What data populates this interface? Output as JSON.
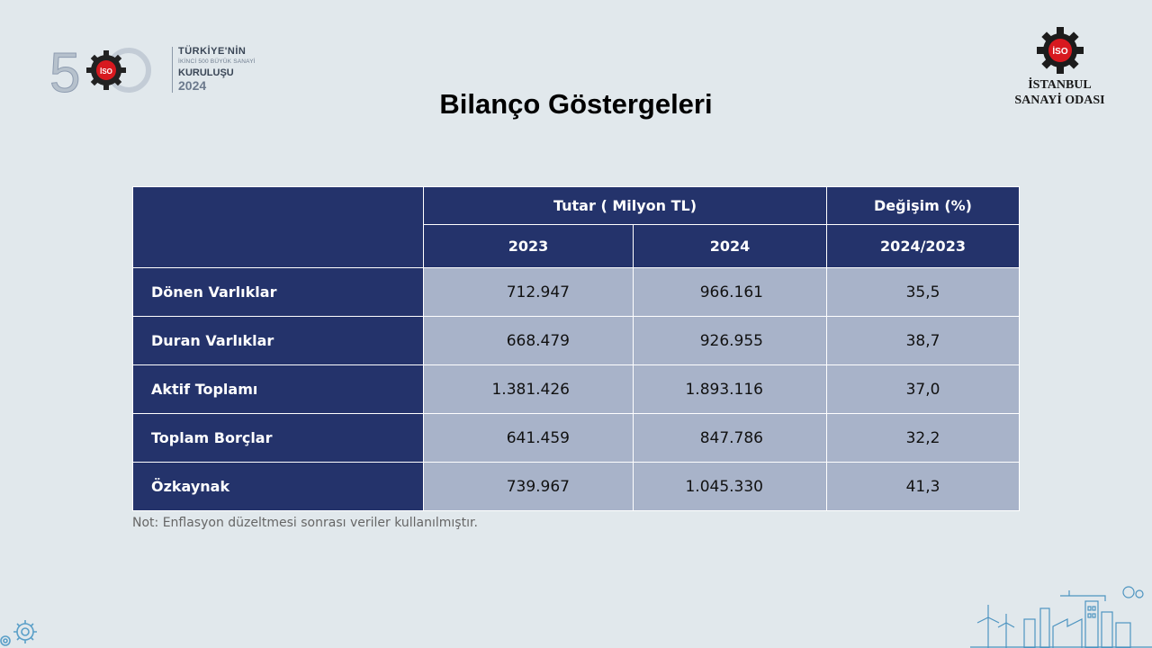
{
  "logo_500": {
    "numeral": "500",
    "line1": "TÜRKİYE'NİN",
    "line2": "İKİNCİ 500 BÜYÜK SANAYİ",
    "line3": "KURULUŞU",
    "line4": "2024",
    "badge": "İSO"
  },
  "logo_iso": {
    "badge": "İSO",
    "name_line1": "İSTANBUL",
    "name_line2": "SANAYİ ODASI"
  },
  "title": "Bilanço Göstergeleri",
  "table": {
    "header_amount": "Tutar ( Milyon TL)",
    "header_change": "Değişim (%)",
    "year_2023": "2023",
    "year_2024": "2024",
    "ratio": "2024/2023",
    "rows": [
      {
        "label": "Dönen Varlıklar",
        "v2023": "712.947",
        "v2024": "966.161",
        "change": "35,5"
      },
      {
        "label": "Duran Varlıklar",
        "v2023": "668.479",
        "v2024": "926.955",
        "change": "38,7"
      },
      {
        "label": "Aktif Toplamı",
        "v2023": "1.381.426",
        "v2024": "1.893.116",
        "change": "37,0"
      },
      {
        "label": "Toplam Borçlar",
        "v2023": "641.459",
        "v2024": "847.786",
        "change": "32,2"
      },
      {
        "label": "Özkaynak",
        "v2023": "739.967",
        "v2024": "1.045.330",
        "change": "41,3"
      }
    ]
  },
  "note": "Not: Enflasyon düzeltmesi sonrası veriler kullanılmıştır.",
  "icons": {
    "gear": "gear-icon",
    "industry": "factory-skyline-icon"
  },
  "colors": {
    "header_bg": "#24336b",
    "cell_bg": "#a8b3c9",
    "page_bg": "#e1e8ec",
    "brand_red": "#d7191f"
  }
}
